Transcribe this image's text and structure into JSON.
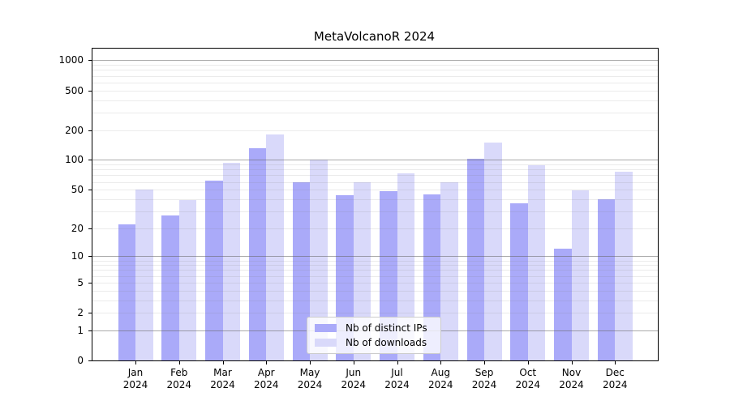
{
  "chart_data": {
    "type": "bar",
    "title": "MetaVolcanoR 2024",
    "scale": "log10(x+1)",
    "categories": [
      "Jan",
      "Feb",
      "Mar",
      "Apr",
      "May",
      "Jun",
      "Jul",
      "Aug",
      "Sep",
      "Oct",
      "Nov",
      "Dec"
    ],
    "year_label": "2024",
    "series": [
      {
        "name": "Nb of distinct IPs",
        "color": "#aaaaf9",
        "values": [
          22,
          27,
          62,
          132,
          59,
          44,
          48,
          45,
          103,
          36,
          12,
          40
        ]
      },
      {
        "name": "Nb of downloads",
        "color": "#d9d9fa",
        "values": [
          50,
          39,
          94,
          182,
          100,
          60,
          73,
          59,
          150,
          88,
          49,
          76
        ]
      }
    ],
    "y_ticks": [
      0,
      1,
      2,
      5,
      10,
      20,
      50,
      100,
      200,
      500,
      1000
    ],
    "ylim": [
      0,
      1300
    ],
    "xlabel": "",
    "ylabel": "",
    "grid": true,
    "legend_position": "bottom-center",
    "colors": {
      "major_grid": "#b3b3b3",
      "minor_grid": "#ebebeb",
      "axis": "#000000",
      "background": "#ffffff"
    }
  }
}
